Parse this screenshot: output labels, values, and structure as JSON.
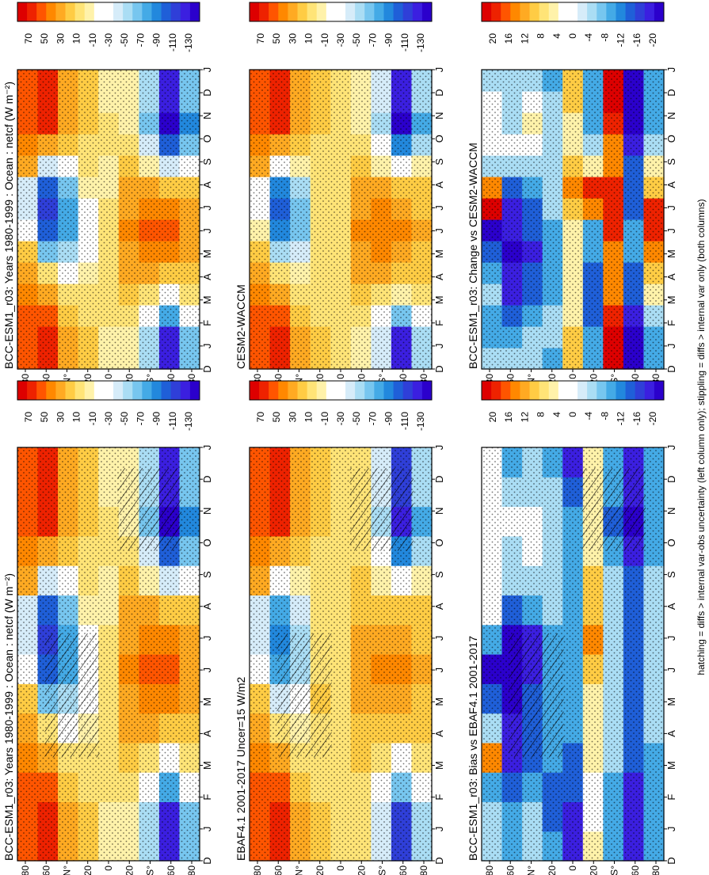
{
  "footer": {
    "note": "hatching = diffs > internal var-obs uncertainty (left column only); stippling = diffs > internal var only (both columns)"
  },
  "palettes": {
    "main": [
      "#dd0000",
      "#ee2200",
      "#ff5500",
      "#ff8800",
      "#ffaa22",
      "#ffcc44",
      "#ffe477",
      "#fff2aa",
      "#ffffff",
      "#ffffff",
      "#d6ecf9",
      "#aaddf4",
      "#77c6ef",
      "#44aae6",
      "#2288dd",
      "#1f5fd8",
      "#2f3fd8",
      "#3b1fe0",
      "#2b00cc"
    ],
    "diff": [
      "#dd0000",
      "#ee2200",
      "#ff5500",
      "#ff8800",
      "#ffaa22",
      "#ffcc44",
      "#ffe477",
      "#fff2aa",
      "#ffffff",
      "#ffffff",
      "#d6ecf9",
      "#aaddf4",
      "#77c6ef",
      "#44aae6",
      "#2288dd",
      "#1f5fd8",
      "#2f3fd8",
      "#3b1fe0",
      "#2b00cc"
    ]
  },
  "axes": {
    "months": [
      "D",
      "J",
      "F",
      "M",
      "A",
      "M",
      "J",
      "J",
      "A",
      "S",
      "O",
      "N",
      "D",
      "J"
    ],
    "lat_ticks": [
      "80",
      "60",
      "N°",
      "20",
      "0",
      "20",
      "S°",
      "60",
      "80"
    ]
  },
  "colorbars": {
    "main": [
      "70",
      "50",
      "30",
      "10",
      "-10",
      "-30",
      "-50",
      "-70",
      "-90",
      "-110",
      "-130"
    ],
    "diff": [
      "20",
      "16",
      "12",
      "8",
      "4",
      "0",
      "-4",
      "-8",
      "-12",
      "-16",
      "-20"
    ]
  },
  "panels": [
    {
      "id": "p1",
      "title": "BCC-ESM1_r03: Years 1980-1999 : Ocean : netcf (W m⁻²)",
      "kind": "main",
      "hatch": true
    },
    {
      "id": "p2",
      "title": "EBAF4.1 2001-2017 Uncer=15 W/m2",
      "kind": "main",
      "hatch": true
    },
    {
      "id": "p3",
      "title": "BCC-ESM1_r03: Bias vs EBAF4.1 2001-2017",
      "kind": "diff",
      "hatch": true
    },
    {
      "id": "p4",
      "title": "BCC-ESM1_r03: Years 1980-1999 : Ocean : netcf (W m⁻²)",
      "kind": "main",
      "hatch": false
    },
    {
      "id": "p5",
      "title": "CESM2-WACCM",
      "kind": "main",
      "hatch": false
    },
    {
      "id": "p6",
      "title": "BCC-ESM1_r03: Change vs CESM2-WACCM",
      "kind": "diff",
      "hatch": false
    }
  ],
  "chart_data": [
    {
      "type": "heatmap",
      "title": "BCC-ESM1_r03: Years 1980-1999 : Ocean : netcf (W m⁻²)",
      "xlabel": "",
      "ylabel": "",
      "x": [
        "D",
        "J",
        "F",
        "M",
        "A",
        "M",
        "J",
        "J",
        "A",
        "S",
        "O",
        "N",
        "D",
        "J"
      ],
      "y": [
        "80N",
        "60N",
        "40N",
        "20N",
        "0",
        "20S",
        "40S",
        "60S",
        "80S"
      ],
      "z": [
        [
          40,
          45,
          40,
          30,
          20,
          10,
          -20,
          -40,
          -40,
          20,
          30,
          40,
          40,
          45
        ],
        [
          50,
          50,
          40,
          20,
          0,
          -60,
          -90,
          -100,
          -90,
          -40,
          20,
          50,
          50,
          50
        ],
        [
          20,
          20,
          10,
          0,
          -20,
          -50,
          -70,
          -70,
          -60,
          -20,
          10,
          20,
          20,
          20
        ],
        [
          10,
          10,
          5,
          0,
          -10,
          -20,
          -30,
          -20,
          -10,
          0,
          5,
          10,
          10,
          10
        ],
        [
          -5,
          -5,
          0,
          5,
          5,
          5,
          0,
          0,
          -5,
          -5,
          0,
          0,
          -5,
          -5
        ],
        [
          -10,
          -10,
          0,
          10,
          20,
          25,
          30,
          25,
          20,
          10,
          0,
          -10,
          -10,
          -10
        ],
        [
          -50,
          -50,
          -30,
          0,
          20,
          30,
          40,
          30,
          20,
          -10,
          -40,
          -60,
          -50,
          -50
        ],
        [
          -110,
          -110,
          -70,
          -20,
          10,
          30,
          40,
          30,
          10,
          -40,
          -90,
          -120,
          -110,
          -110
        ],
        [
          -60,
          -60,
          -30,
          0,
          10,
          20,
          20,
          20,
          10,
          -20,
          -60,
          -80,
          -60,
          -60
        ]
      ]
    },
    {
      "type": "heatmap",
      "title": "EBAF4.1 2001-2017 Uncer=15 W/m2",
      "xlabel": "",
      "ylabel": "",
      "x": [
        "D",
        "J",
        "F",
        "M",
        "A",
        "M",
        "J",
        "J",
        "A",
        "S",
        "O",
        "N",
        "D",
        "J"
      ],
      "y": [
        "80N",
        "60N",
        "40N",
        "20N",
        "0",
        "20S",
        "40S",
        "60S",
        "80S"
      ],
      "z": [
        [
          40,
          45,
          40,
          30,
          20,
          10,
          -20,
          -40,
          -40,
          20,
          30,
          40,
          40,
          45
        ],
        [
          50,
          50,
          40,
          20,
          0,
          -40,
          -70,
          -80,
          -70,
          -30,
          20,
          50,
          50,
          50
        ],
        [
          20,
          20,
          10,
          0,
          -10,
          -30,
          -50,
          -50,
          -40,
          -10,
          10,
          20,
          20,
          20
        ],
        [
          10,
          10,
          5,
          0,
          5,
          10,
          5,
          0,
          0,
          0,
          5,
          10,
          10,
          10
        ],
        [
          5,
          5,
          5,
          5,
          5,
          5,
          5,
          5,
          5,
          5,
          5,
          5,
          5,
          5
        ],
        [
          0,
          0,
          5,
          10,
          15,
          20,
          25,
          20,
          15,
          10,
          5,
          0,
          0,
          0
        ],
        [
          -40,
          -40,
          -20,
          0,
          15,
          25,
          30,
          25,
          15,
          -5,
          -30,
          -50,
          -40,
          -40
        ],
        [
          -100,
          -100,
          -60,
          -20,
          10,
          20,
          30,
          25,
          10,
          -30,
          -80,
          -110,
          -100,
          -100
        ],
        [
          -50,
          -50,
          -20,
          0,
          10,
          15,
          20,
          15,
          10,
          -10,
          -50,
          -70,
          -50,
          -50
        ]
      ]
    },
    {
      "type": "heatmap",
      "title": "BCC-ESM1_r03: Bias vs EBAF4.1 2001-2017",
      "xlabel": "",
      "ylabel": "",
      "x": [
        "D",
        "J",
        "F",
        "M",
        "A",
        "M",
        "J",
        "J",
        "A",
        "S",
        "O",
        "N",
        "D",
        "J"
      ],
      "y": [
        "80N",
        "60N",
        "40N",
        "20N",
        "0",
        "20S",
        "40S",
        "60S",
        "80S"
      ],
      "z": [
        [
          -4,
          -4,
          -8,
          12,
          -4,
          -12,
          -20,
          -8,
          0,
          0,
          0,
          0,
          0,
          0
        ],
        [
          -8,
          -8,
          -12,
          -16,
          -16,
          -20,
          -20,
          -20,
          -12,
          -4,
          -4,
          0,
          -4,
          -8
        ],
        [
          -4,
          -4,
          -8,
          -12,
          -12,
          -12,
          -16,
          -16,
          -8,
          -4,
          0,
          0,
          -4,
          -4
        ],
        [
          -8,
          -12,
          -12,
          -8,
          -8,
          -8,
          -8,
          -8,
          -4,
          -4,
          -4,
          -4,
          -4,
          -8
        ],
        [
          -16,
          -16,
          -12,
          -12,
          -8,
          -8,
          -8,
          -8,
          -8,
          -8,
          -8,
          -8,
          -12,
          -16
        ],
        [
          4,
          0,
          0,
          4,
          4,
          4,
          8,
          12,
          8,
          8,
          4,
          4,
          4,
          4
        ],
        [
          -8,
          -8,
          -8,
          -4,
          -4,
          -4,
          -4,
          -4,
          -4,
          -4,
          -8,
          -12,
          -8,
          -8
        ],
        [
          -16,
          -16,
          -16,
          -12,
          -12,
          -12,
          -12,
          -12,
          -12,
          -12,
          -16,
          -20,
          -16,
          -16
        ],
        [
          -8,
          -8,
          -8,
          -8,
          -4,
          -4,
          -4,
          -4,
          -4,
          -4,
          -8,
          -8,
          -8,
          -8
        ]
      ]
    },
    {
      "type": "heatmap",
      "title": "BCC-ESM1_r03: Years 1980-1999 : Ocean : netcf (W m⁻²)",
      "xlabel": "",
      "ylabel": "",
      "x": [
        "D",
        "J",
        "F",
        "M",
        "A",
        "M",
        "J",
        "J",
        "A",
        "S",
        "O",
        "N",
        "D",
        "J"
      ],
      "y": [
        "80N",
        "60N",
        "40N",
        "20N",
        "0",
        "20S",
        "40S",
        "60S",
        "80S"
      ],
      "z": [
        [
          40,
          45,
          40,
          30,
          20,
          10,
          -20,
          -40,
          -40,
          20,
          30,
          40,
          40,
          45
        ],
        [
          50,
          50,
          40,
          20,
          0,
          -60,
          -90,
          -100,
          -90,
          -40,
          20,
          50,
          50,
          50
        ],
        [
          20,
          20,
          10,
          0,
          -20,
          -50,
          -70,
          -70,
          -60,
          -20,
          10,
          20,
          20,
          20
        ],
        [
          10,
          10,
          5,
          0,
          -10,
          -20,
          -30,
          -20,
          -10,
          0,
          5,
          10,
          10,
          10
        ],
        [
          -5,
          -5,
          0,
          5,
          5,
          5,
          0,
          0,
          -5,
          -5,
          0,
          0,
          -5,
          -5
        ],
        [
          -10,
          -10,
          0,
          10,
          20,
          25,
          30,
          25,
          20,
          10,
          0,
          -10,
          -10,
          -10
        ],
        [
          -50,
          -50,
          -30,
          0,
          20,
          30,
          40,
          30,
          20,
          -10,
          -40,
          -60,
          -50,
          -50
        ],
        [
          -110,
          -110,
          -70,
          -20,
          10,
          30,
          40,
          30,
          10,
          -40,
          -90,
          -120,
          -110,
          -110
        ],
        [
          -60,
          -60,
          -30,
          0,
          10,
          20,
          20,
          20,
          10,
          -20,
          -60,
          -80,
          -60,
          -60
        ]
      ]
    },
    {
      "type": "heatmap",
      "title": "CESM2-WACCM",
      "xlabel": "",
      "ylabel": "",
      "x": [
        "D",
        "J",
        "F",
        "M",
        "A",
        "M",
        "J",
        "J",
        "A",
        "S",
        "O",
        "N",
        "D",
        "J"
      ],
      "y": [
        "80N",
        "60N",
        "40N",
        "20N",
        "0",
        "20S",
        "40S",
        "60S",
        "80S"
      ],
      "z": [
        [
          40,
          45,
          40,
          30,
          20,
          10,
          -10,
          -30,
          -30,
          20,
          30,
          40,
          40,
          45
        ],
        [
          50,
          50,
          40,
          20,
          0,
          -50,
          -80,
          -90,
          -80,
          -30,
          20,
          50,
          50,
          50
        ],
        [
          20,
          20,
          10,
          0,
          -10,
          -40,
          -60,
          -60,
          -50,
          -10,
          10,
          20,
          20,
          20
        ],
        [
          10,
          10,
          5,
          0,
          0,
          0,
          0,
          0,
          0,
          0,
          5,
          10,
          10,
          10
        ],
        [
          0,
          0,
          5,
          5,
          5,
          5,
          5,
          5,
          5,
          5,
          5,
          0,
          0,
          0
        ],
        [
          -5,
          -5,
          5,
          10,
          20,
          25,
          30,
          25,
          20,
          10,
          0,
          -5,
          -5,
          -5
        ],
        [
          -40,
          -40,
          -20,
          0,
          20,
          30,
          35,
          30,
          20,
          -5,
          -30,
          -50,
          -40,
          -40
        ],
        [
          -110,
          -110,
          -60,
          -10,
          10,
          25,
          35,
          25,
          10,
          -30,
          -80,
          -120,
          -110,
          -110
        ],
        [
          -50,
          -50,
          -20,
          0,
          10,
          15,
          20,
          15,
          10,
          -10,
          -50,
          -70,
          -50,
          -50
        ]
      ]
    },
    {
      "type": "heatmap",
      "title": "BCC-ESM1_r03: Change vs CESM2-WACCM",
      "xlabel": "",
      "ylabel": "",
      "x": [
        "D",
        "J",
        "F",
        "M",
        "A",
        "M",
        "J",
        "J",
        "A",
        "S",
        "O",
        "N",
        "D",
        "J"
      ],
      "y": [
        "80N",
        "60N",
        "40N",
        "20N",
        "0",
        "20S",
        "40S",
        "60S",
        "80S"
      ],
      "z": [
        [
          -4,
          -8,
          -8,
          -4,
          -8,
          -12,
          -20,
          20,
          12,
          -4,
          0,
          0,
          0,
          -4
        ],
        [
          -4,
          -8,
          -12,
          -16,
          -16,
          -20,
          -16,
          -16,
          -12,
          -4,
          0,
          -4,
          -4,
          -4
        ],
        [
          -4,
          -4,
          -8,
          -12,
          -12,
          -16,
          -12,
          -12,
          -8,
          -4,
          0,
          4,
          0,
          -4
        ],
        [
          -8,
          -4,
          -4,
          -8,
          -8,
          -8,
          -8,
          -4,
          -4,
          -4,
          -4,
          -4,
          -4,
          -8
        ],
        [
          8,
          8,
          4,
          4,
          4,
          4,
          4,
          8,
          12,
          8,
          4,
          4,
          8,
          8
        ],
        [
          -8,
          -8,
          -12,
          -12,
          -12,
          -8,
          -8,
          12,
          16,
          4,
          -4,
          -8,
          -8,
          -8
        ],
        [
          20,
          20,
          16,
          12,
          12,
          12,
          16,
          16,
          16,
          12,
          12,
          16,
          20,
          20
        ],
        [
          -20,
          -20,
          -16,
          -12,
          -12,
          -8,
          -8,
          -12,
          -12,
          -12,
          -16,
          -20,
          -20,
          -20
        ],
        [
          -8,
          -8,
          -4,
          4,
          8,
          12,
          16,
          16,
          8,
          4,
          -4,
          -8,
          -8,
          -8
        ]
      ]
    }
  ]
}
